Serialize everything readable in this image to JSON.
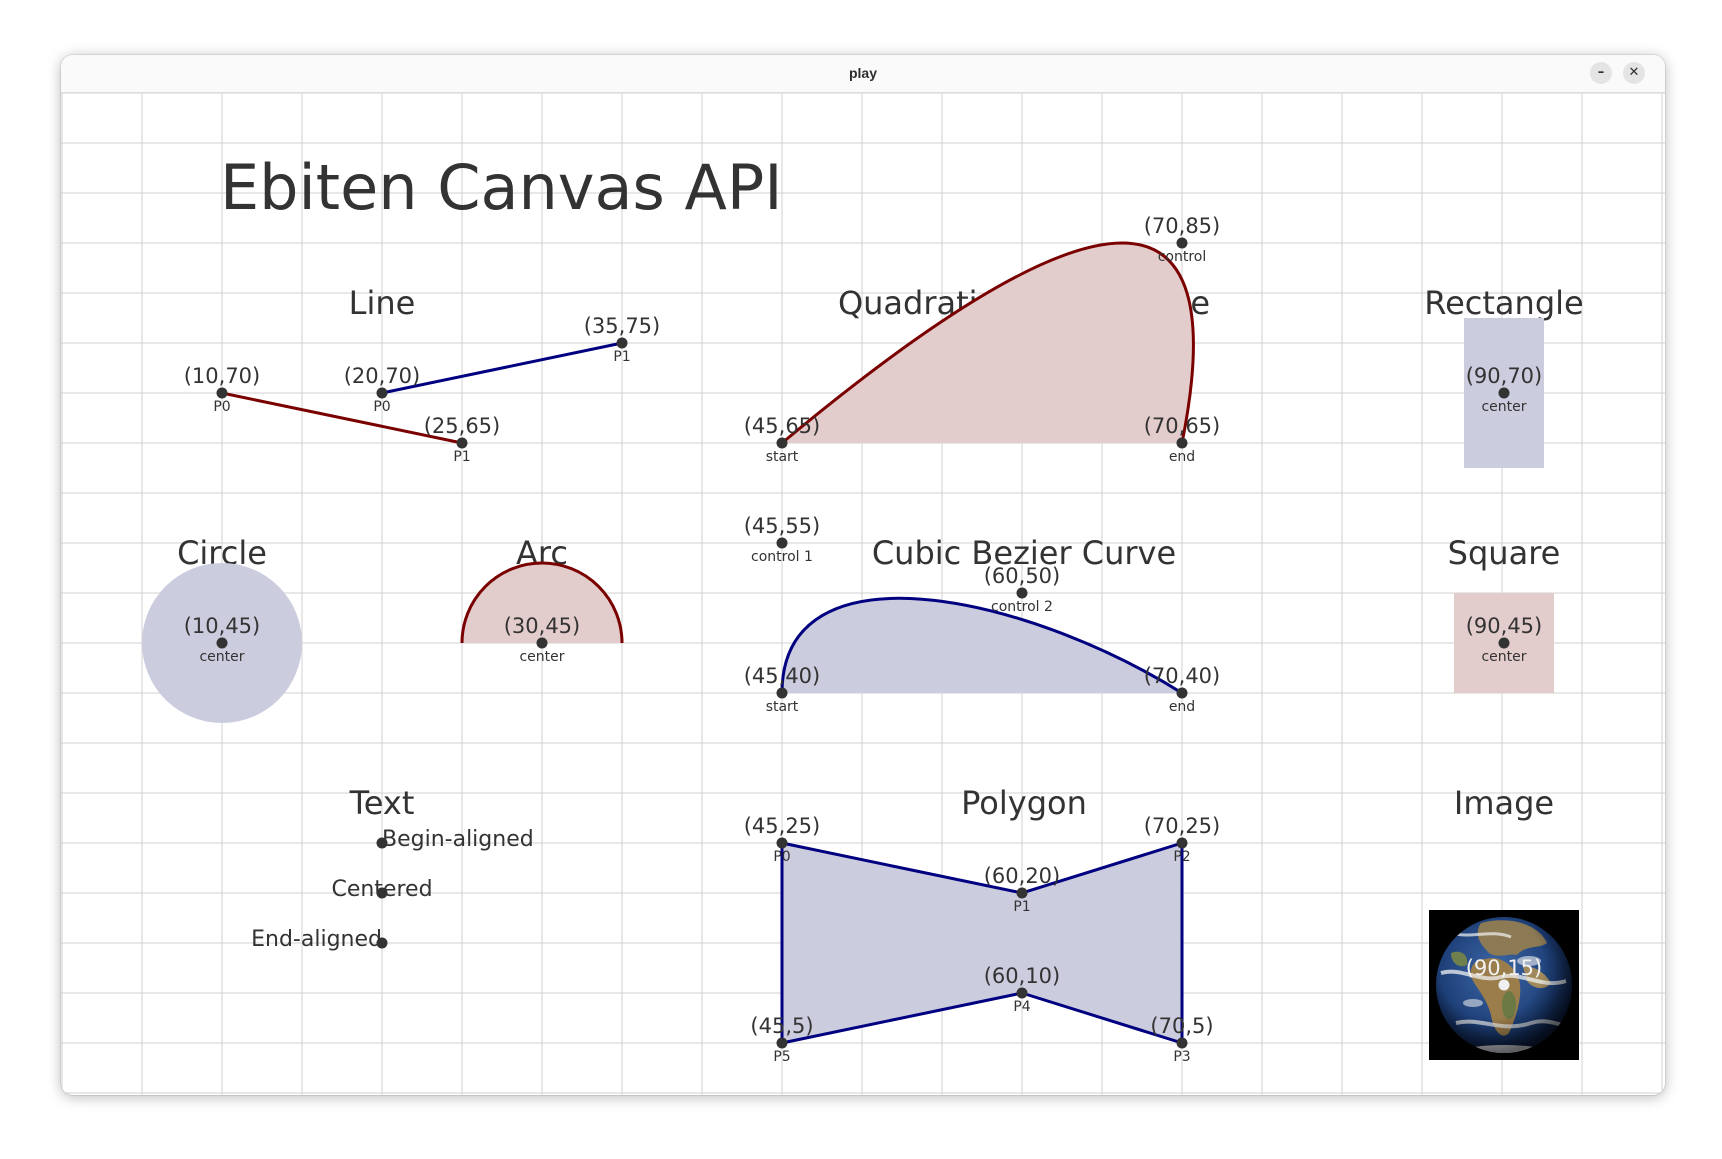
{
  "window": {
    "title": "play",
    "minimize_glyph": "–",
    "close_glyph": "✕"
  },
  "canvas": {
    "heading": "Ebiten Canvas API",
    "colors": {
      "dark_red": "#7a0000",
      "navy": "#000080",
      "red_fill": "#e3cccc",
      "blue_fill": "#ccccdf",
      "point": "#333333",
      "grid": "#d2d2d2"
    },
    "sections": {
      "line": "Line",
      "quadratic": "Quadratic Bezier Curve",
      "rectangle": "Rectangle",
      "circle": "Circle",
      "arc": "Arc",
      "cubic": "Cubic Bezier Curve",
      "square": "Square",
      "text": "Text",
      "polygon": "Polygon",
      "image": "Image"
    },
    "line": {
      "p0a_coord": "(10,70)",
      "p0a_label": "P0",
      "p1a_coord": "(25,65)",
      "p1a_label": "P1",
      "p0b_coord": "(20,70)",
      "p0b_label": "P0",
      "p1b_coord": "(35,75)",
      "p1b_label": "P1"
    },
    "quadratic": {
      "start_coord": "(45,65)",
      "start_label": "start",
      "end_coord": "(70,65)",
      "end_label": "end",
      "control_coord": "(70,85)",
      "control_label": "control"
    },
    "rectangle": {
      "center_coord": "(90,70)",
      "center_label": "center"
    },
    "circle": {
      "center_coord": "(10,45)",
      "center_label": "center"
    },
    "arc": {
      "center_coord": "(30,45)",
      "center_label": "center"
    },
    "cubic": {
      "control1_coord": "(45,55)",
      "control1_label": "control 1",
      "control2_coord": "(60,50)",
      "control2_label": "control 2",
      "start_coord": "(45,40)",
      "start_label": "start",
      "end_coord": "(70,40)",
      "end_label": "end"
    },
    "square": {
      "center_coord": "(90,45)",
      "center_label": "center"
    },
    "text_demo": {
      "begin": "Begin-aligned",
      "centered": "Centered",
      "end": "End-aligned"
    },
    "polygon": {
      "p0_coord": "(45,25)",
      "p0_label": "P0",
      "p1_coord": "(60,20)",
      "p1_label": "P1",
      "p2_coord": "(70,25)",
      "p2_label": "P2",
      "p3_coord": "(70,5)",
      "p3_label": "P3",
      "p4_coord": "(60,10)",
      "p4_label": "P4",
      "p5_coord": "(45,5)",
      "p5_label": "P5"
    },
    "image": {
      "center_coord": "(90,15)"
    }
  }
}
